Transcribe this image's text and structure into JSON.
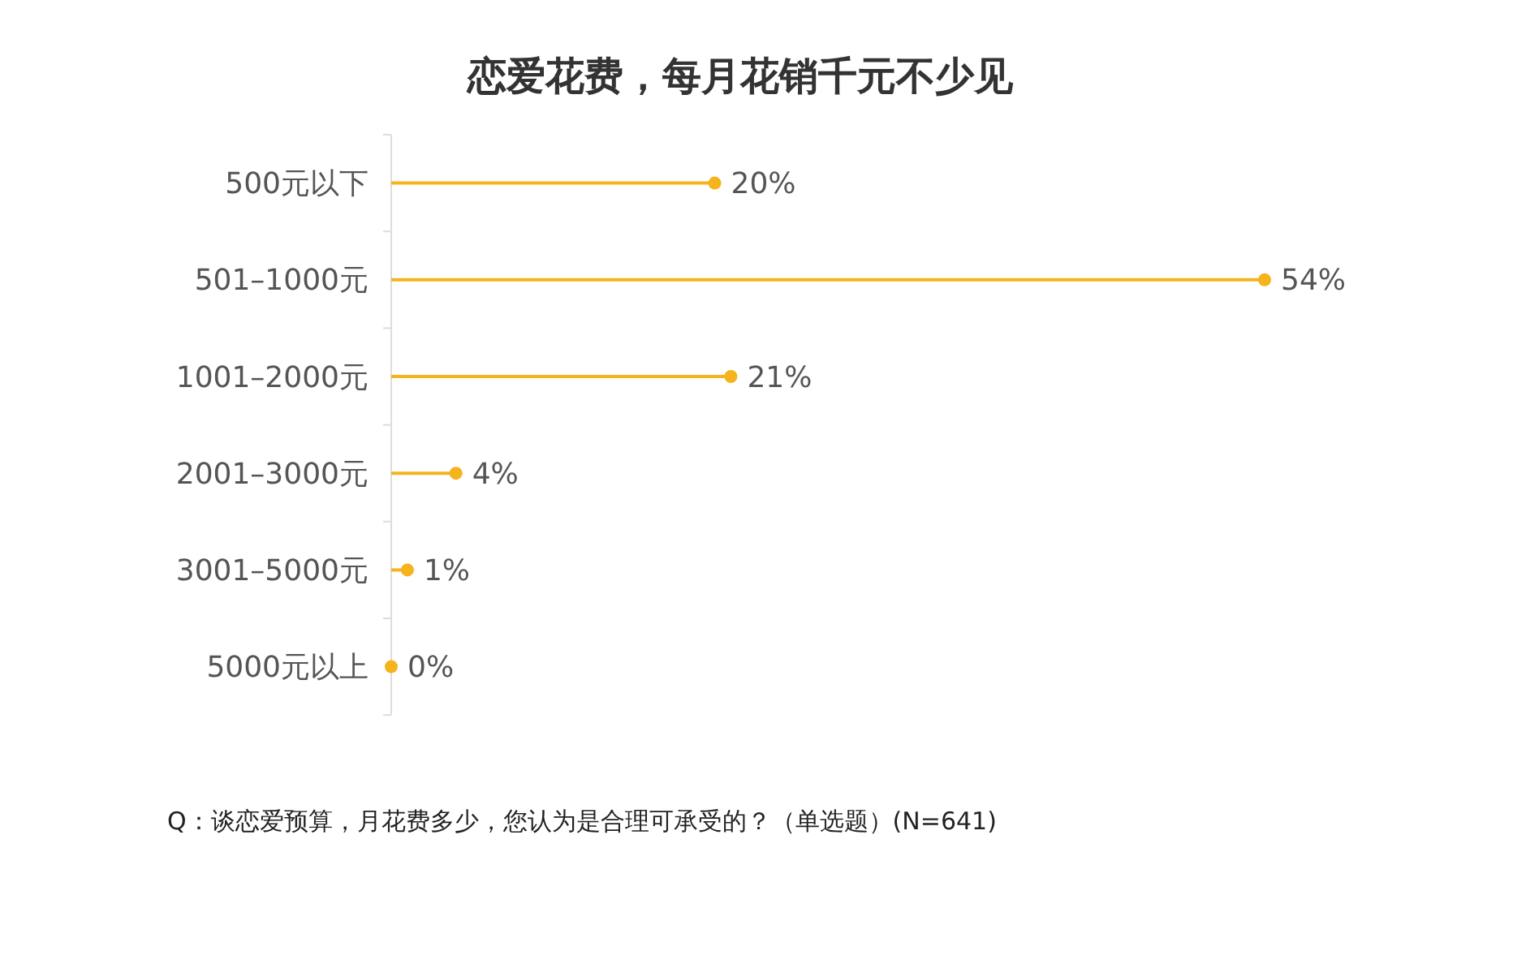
{
  "chart_data": {
    "type": "lollipop",
    "orientation": "horizontal",
    "title": "恋爱花费，每月花销千元不少见",
    "categories": [
      "500元以下",
      "501–1000元",
      "1001–2000元",
      "2001–3000元",
      "3001–5000元",
      "5000元以上"
    ],
    "values": [
      20,
      54,
      21,
      4,
      1,
      0
    ],
    "value_labels": [
      "20%",
      "54%",
      "21%",
      "4%",
      "1%",
      "0%"
    ],
    "color": "#f5b31c",
    "marker": "circle",
    "tick_labels": "y",
    "annotations": [
      "Q：谈恋爱预算，月花费多少，您认为是合理可承受的？（单选题）(N=641)"
    ]
  }
}
